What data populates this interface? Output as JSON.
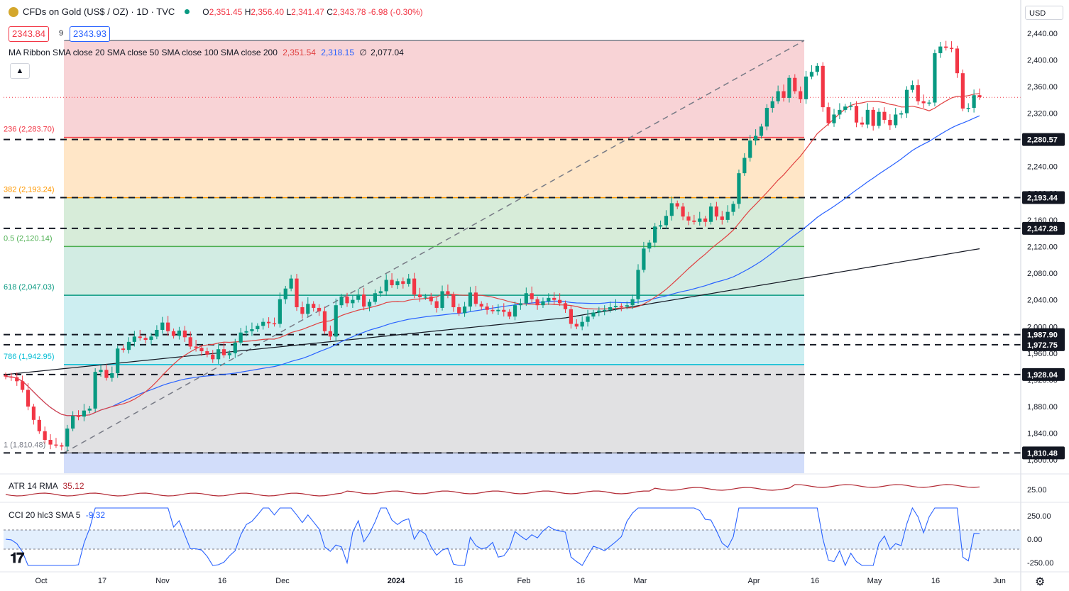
{
  "header": {
    "symbol_title": "CFDs on Gold (US$ / OZ) · 1D · TVC",
    "open_label": "O",
    "open": "2,351.45",
    "high_label": "H",
    "high": "2,356.40",
    "low_label": "L",
    "low": "2,341.47",
    "close_label": "C",
    "close": "2,343.78",
    "change": "-6.98 (-0.30%)",
    "bid": "2343.84",
    "spread": "9",
    "ask": "2343.93"
  },
  "ma_ribbon": {
    "label": "MA Ribbon SMA close 20 SMA close 50 SMA close 100 SMA close 200",
    "v20": "2,351.54",
    "v50": "2,318.15",
    "v100": "∅",
    "v200": "2,077.04"
  },
  "currency": "USD",
  "fib_labels": [
    {
      "text": "236 (2,283.70)",
      "price": 2283.7,
      "color": "#f23645"
    },
    {
      "text": "382 (2,193.24)",
      "price": 2193.24,
      "color": "#ff9800"
    },
    {
      "text": "0.5 (2,120.14)",
      "price": 2120.14,
      "color": "#4caf50"
    },
    {
      "text": "618 (2,047.03)",
      "price": 2047.03,
      "color": "#089981"
    },
    {
      "text": "786 (1,942.95)",
      "price": 1942.95,
      "color": "#00bcd4"
    },
    {
      "text": "1 (1,810.48)",
      "price": 1810.48,
      "color": "#787b86"
    }
  ],
  "level_labels": [
    "2,280.57",
    "2,193.44",
    "2,147.28",
    "1,987.90",
    "1,972.75",
    "1,928.04",
    "1,810.48"
  ],
  "level_prices": [
    2280.57,
    2193.44,
    2147.28,
    1987.9,
    1972.75,
    1928.04,
    1810.48
  ],
  "price_axis": [
    "2,440.00",
    "2,400.00",
    "2,360.00",
    "2,320.00",
    "2,240.00",
    "2,200.00",
    "2,160.00",
    "2,120.00",
    "2,080.00",
    "2,040.00",
    "2,000.00",
    "1,960.00",
    "1,920.00",
    "1,880.00",
    "1,840.00",
    "1,800.00"
  ],
  "price_axis_values": [
    2440,
    2400,
    2360,
    2320,
    2240,
    2200,
    2160,
    2120,
    2080,
    2040,
    2000,
    1960,
    1920,
    1880,
    1840,
    1800
  ],
  "time_axis": [
    "Oct",
    "17",
    "Nov",
    "16",
    "Dec",
    "2024",
    "16",
    "Feb",
    "16",
    "Mar",
    "Apr",
    "16",
    "May",
    "16",
    "Jun"
  ],
  "atr": {
    "label": "ATR 14 RMA",
    "value": "35.12",
    "axis": "25.00"
  },
  "cci": {
    "label": "CCI 20 hlc3 SMA 5",
    "value": "-9.32",
    "axis": [
      "250.00",
      "0.00",
      "-250.00"
    ]
  },
  "colors": {
    "up": "#089981",
    "down": "#f23645",
    "sma20": "#e04040",
    "sma50": "#2962ff",
    "sma200": "#131722",
    "cci": "#2962ff",
    "atr": "#b22833"
  },
  "chart_data": {
    "type": "candlestick",
    "y_range": [
      1790,
      2465
    ],
    "daily_closes_approx": [
      1925,
      1924,
      1918,
      1905,
      1880,
      1860,
      1843,
      1830,
      1823,
      1822,
      1820,
      1847,
      1866,
      1865,
      1874,
      1877,
      1932,
      1935,
      1923,
      1930,
      1967,
      1965,
      1977,
      1985,
      1983,
      1980,
      1985,
      1995,
      2006,
      1993,
      1986,
      1994,
      1984,
      1970,
      1968,
      1963,
      1958,
      1951,
      1966,
      1957,
      1960,
      1976,
      1991,
      1993,
      1996,
      2001,
      2007,
      2005,
      2004,
      2041,
      2057,
      2072,
      2029,
      2019,
      2034,
      2028,
      2023,
      1993,
      1985,
      2032,
      2045,
      2035,
      2040,
      2048,
      2030,
      2037,
      2050,
      2053,
      2070,
      2062,
      2068,
      2064,
      2072,
      2048,
      2044,
      2045,
      2038,
      2028,
      2053,
      2048,
      2029,
      2020,
      2030,
      2051,
      2034,
      2030,
      2025,
      2023,
      2025,
      2022,
      2015,
      2032,
      2035,
      2050,
      2041,
      2032,
      2038,
      2043,
      2040,
      2035,
      2026,
      2004,
      2000,
      2007,
      2015,
      2021,
      2024,
      2025,
      2029,
      2031,
      2030,
      2032,
      2041,
      2085,
      2117,
      2126,
      2150,
      2152,
      2166,
      2185,
      2180,
      2165,
      2159,
      2157,
      2162,
      2157,
      2180,
      2165,
      2160,
      2172,
      2184,
      2230,
      2253,
      2279,
      2286,
      2300,
      2328,
      2338,
      2353,
      2343,
      2373,
      2353,
      2341,
      2375,
      2382,
      2391,
      2329,
      2305,
      2318,
      2325,
      2330,
      2331,
      2306,
      2303,
      2325,
      2301,
      2322,
      2310,
      2302,
      2318,
      2320,
      2355,
      2362,
      2338,
      2335,
      2336,
      2410,
      2420,
      2418,
      2417,
      2380,
      2327,
      2328,
      2347,
      2344
    ]
  }
}
